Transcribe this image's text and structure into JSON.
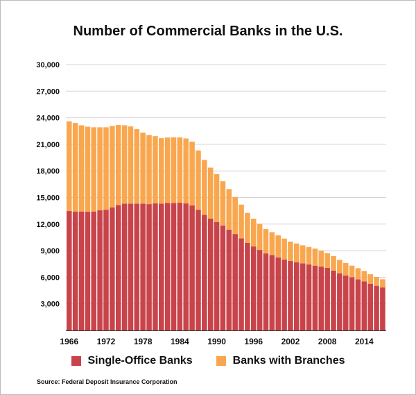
{
  "chart_data": {
    "type": "bar",
    "stacked": true,
    "title": "Number of Commercial Banks in the U.S.",
    "xlabel": "",
    "ylabel": "",
    "ylim": [
      0,
      30000
    ],
    "grid": true,
    "legend_position": "bottom",
    "yticks": [
      "3,000",
      "6,000",
      "9,000",
      "12,000",
      "15,000",
      "18,000",
      "21,000",
      "24,000",
      "27,000",
      "30,000"
    ],
    "xtick_labels": [
      "1966",
      "1972",
      "1978",
      "1984",
      "1990",
      "1996",
      "2002",
      "2008",
      "2014"
    ],
    "categories": [
      1966,
      1967,
      1968,
      1969,
      1970,
      1971,
      1972,
      1973,
      1974,
      1975,
      1976,
      1977,
      1978,
      1979,
      1980,
      1981,
      1982,
      1983,
      1984,
      1985,
      1986,
      1987,
      1988,
      1989,
      1990,
      1991,
      1992,
      1993,
      1994,
      1995,
      1996,
      1997,
      1998,
      1999,
      2000,
      2001,
      2002,
      2003,
      2004,
      2005,
      2006,
      2007,
      2008,
      2009,
      2010,
      2011,
      2012,
      2013,
      2014,
      2015,
      2016,
      2017
    ],
    "series": [
      {
        "name": "Single-Office Banks",
        "color": "#c8444a",
        "values": [
          13470,
          13420,
          13420,
          13390,
          13420,
          13550,
          13620,
          13890,
          14150,
          14300,
          14300,
          14300,
          14300,
          14250,
          14330,
          14300,
          14380,
          14380,
          14410,
          14330,
          14120,
          13620,
          13050,
          12630,
          12240,
          11850,
          11380,
          10880,
          10390,
          9890,
          9470,
          9080,
          8690,
          8510,
          8250,
          8010,
          7830,
          7700,
          7570,
          7440,
          7310,
          7200,
          7050,
          6760,
          6450,
          6210,
          6000,
          5770,
          5530,
          5270,
          5040,
          4850
        ]
      },
      {
        "name": "Banks with Branches",
        "color": "#f9a74f",
        "values": [
          10120,
          9990,
          9730,
          9600,
          9500,
          9370,
          9300,
          9180,
          9030,
          8850,
          8720,
          8410,
          8020,
          7800,
          7590,
          7390,
          7390,
          7410,
          7380,
          7330,
          7180,
          6690,
          6190,
          5740,
          5400,
          4980,
          4570,
          4180,
          3810,
          3370,
          3140,
          2950,
          2740,
          2580,
          2480,
          2350,
          2190,
          2110,
          2030,
          1980,
          1930,
          1800,
          1670,
          1620,
          1510,
          1390,
          1310,
          1250,
          1180,
          1070,
          990,
          920
        ]
      }
    ],
    "source": "Source: Federal Deposit Insurance Corporation"
  }
}
